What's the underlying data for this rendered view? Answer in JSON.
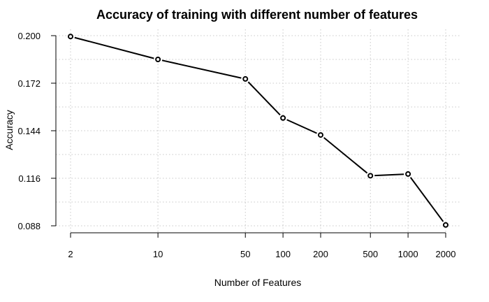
{
  "chart_data": {
    "type": "line",
    "title": "Accuracy of training with different number of features",
    "xlabel": "Number of Features",
    "ylabel": "Accuracy",
    "x_scale": "log",
    "x": [
      2,
      10,
      50,
      100,
      200,
      500,
      1000,
      2000
    ],
    "x_tick_labels": [
      "2",
      "10",
      "50",
      "100",
      "200",
      "500",
      "1000",
      "2000"
    ],
    "series": [
      {
        "values": [
          0.1995,
          0.186,
          0.1745,
          0.1515,
          0.1415,
          0.1175,
          0.1185,
          0.0885
        ]
      }
    ],
    "ylim": [
      0.088,
      0.2
    ],
    "y_ticks": [
      0.088,
      0.116,
      0.144,
      0.172,
      0.2
    ],
    "y_tick_labels": [
      "0.088",
      "0.116",
      "0.144",
      "0.172",
      "0.200"
    ],
    "grid": true,
    "colors": {
      "line": "#000000",
      "grid": "#c8c8c8",
      "marker_fill": "#ffffff"
    }
  }
}
